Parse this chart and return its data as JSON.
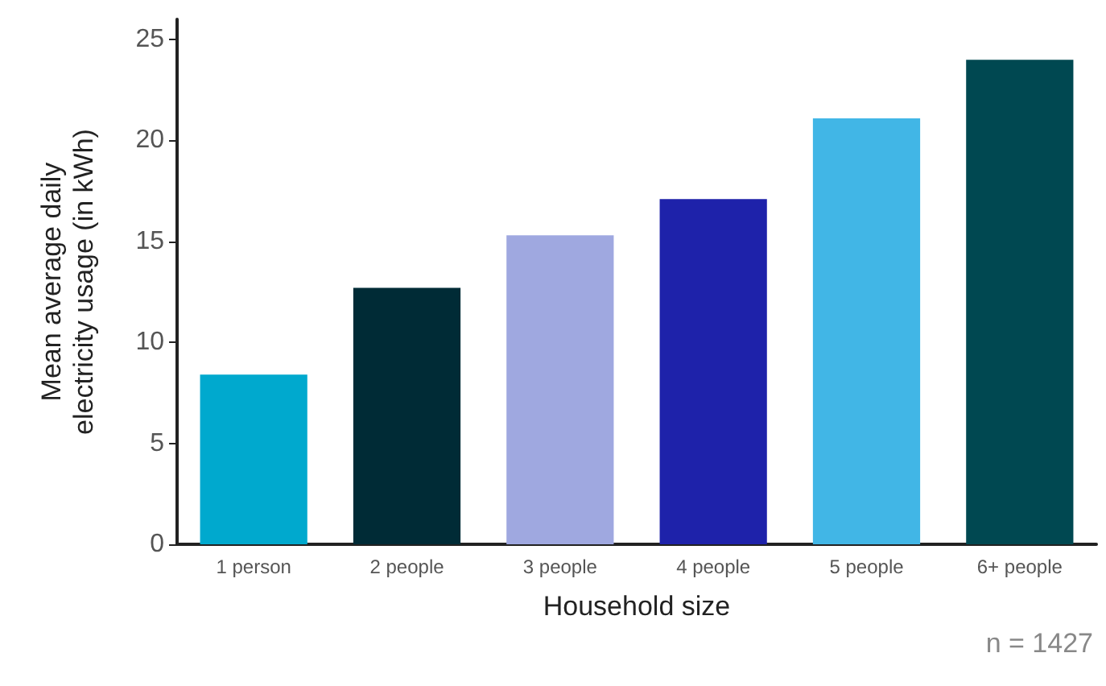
{
  "chart_data": {
    "type": "bar",
    "xlabel": "Household size",
    "ylabel": "Mean average daily\nelectricity usage (in kWh)",
    "categories": [
      "1 person",
      "2 people",
      "3 people",
      "4 people",
      "5 people",
      "6+ people"
    ],
    "values": [
      8.4,
      12.7,
      15.3,
      17.1,
      21.1,
      24.0
    ],
    "colors": [
      "#00a9ce",
      "#002b36",
      "#9fa8e0",
      "#1e22aa",
      "#41b6e6",
      "#004851"
    ],
    "ylim": [
      0,
      26
    ],
    "yticks": [
      0,
      5,
      10,
      15,
      20,
      25
    ],
    "grid": false,
    "annotations": [
      "n = 1427"
    ]
  }
}
